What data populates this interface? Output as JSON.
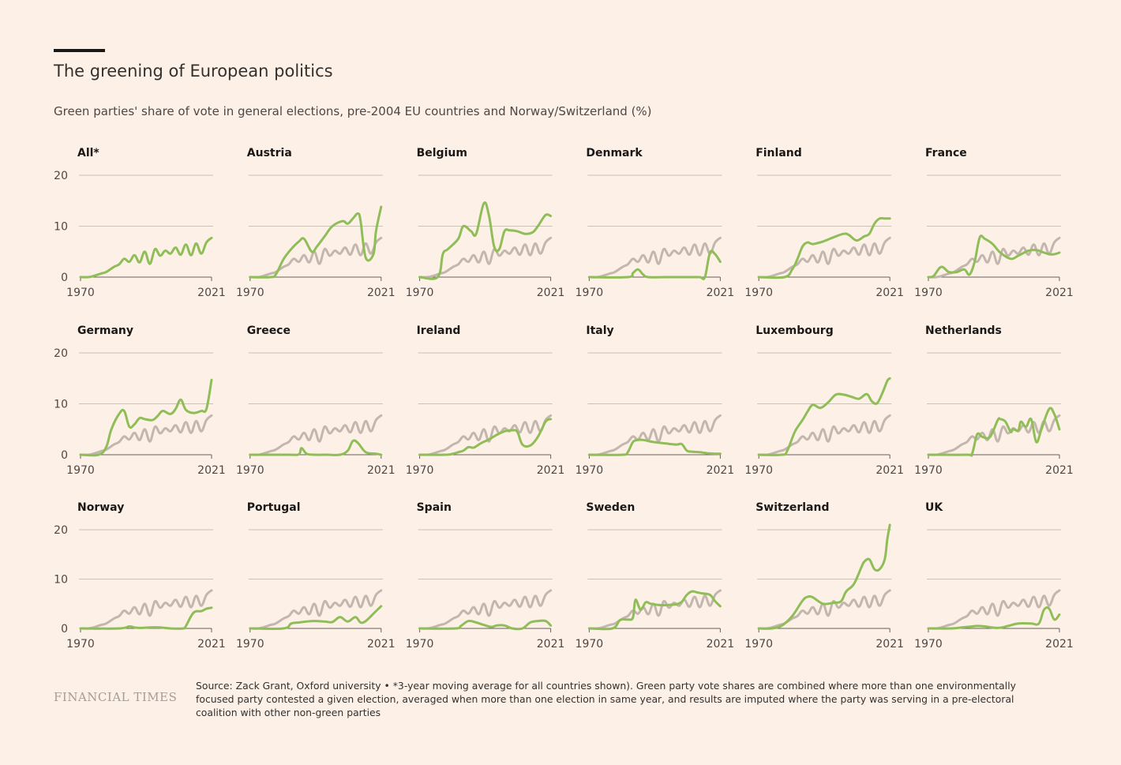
{
  "header": {
    "title": "The greening of European politics",
    "subtitle": "Green parties' share of vote in general elections, pre-2004 EU countries and Norway/Switzerland (%)"
  },
  "footer": {
    "logo": "FINANCIAL TIMES",
    "source": "Source: Zack Grant, Oxford university • *3-year moving average for all countries shown). Green party vote shares are combined where more than one environmentally focused party contested a given election, averaged when more than one election in same year, and results are imputed where the party was serving in a pre-electoral coalition with other non-green parties"
  },
  "colors": {
    "green": "#8fbd57",
    "grey": "#c2b6ae",
    "background": "#fdf0e6"
  },
  "chart_data": {
    "type": "line",
    "layout": "small-multiples",
    "xlim": [
      1970,
      2021
    ],
    "ylim": [
      0,
      20
    ],
    "x_ticks": [
      "1970",
      "2021"
    ],
    "y_ticks": [
      "0",
      "10",
      "20"
    ],
    "reference_series": {
      "name": "All*",
      "x": [
        1970,
        1973,
        1975,
        1978,
        1980,
        1983,
        1985,
        1987,
        1989,
        1991,
        1993,
        1995,
        1997,
        1999,
        2001,
        2003,
        2005,
        2007,
        2009,
        2011,
        2013,
        2015,
        2017,
        2019,
        2021
      ],
      "values": [
        0,
        0,
        0.2,
        0.7,
        1.0,
        2.0,
        2.5,
        3.6,
        3.0,
        4.3,
        2.9,
        5.0,
        2.6,
        5.5,
        4.2,
        5.2,
        4.6,
        5.8,
        4.4,
        6.4,
        4.3,
        6.6,
        4.6,
        6.8,
        7.7
      ]
    },
    "panels": [
      {
        "name": "All*",
        "x": [
          1970,
          1973,
          1975,
          1978,
          1980,
          1983,
          1985,
          1987,
          1989,
          1991,
          1993,
          1995,
          1997,
          1999,
          2001,
          2003,
          2005,
          2007,
          2009,
          2011,
          2013,
          2015,
          2017,
          2019,
          2021
        ],
        "values": [
          0,
          0,
          0.2,
          0.7,
          1.0,
          2.0,
          2.5,
          3.6,
          3.0,
          4.3,
          2.9,
          5.0,
          2.6,
          5.5,
          4.2,
          5.2,
          4.6,
          5.8,
          4.4,
          6.4,
          4.3,
          6.6,
          4.6,
          6.8,
          7.7
        ]
      },
      {
        "name": "Austria",
        "x": [
          1970,
          1978,
          1980,
          1983,
          1986,
          1989,
          1991,
          1994,
          1996,
          1999,
          2002,
          2006,
          2008,
          2010,
          2012,
          2013,
          2015,
          2018,
          2019,
          2021
        ],
        "values": [
          0,
          0,
          0.5,
          3.5,
          5.5,
          7.0,
          7.5,
          5.0,
          6.0,
          8.0,
          10.0,
          11.0,
          10.5,
          11.5,
          12.5,
          11.0,
          3.8,
          4.5,
          9.0,
          13.8
        ]
      },
      {
        "name": "Belgium",
        "x": [
          1970,
          1977,
          1979,
          1981,
          1985,
          1987,
          1990,
          1992,
          1995,
          1997,
          1999,
          2001,
          2003,
          2005,
          2008,
          2011,
          2014,
          2016,
          2019,
          2021
        ],
        "values": [
          0,
          0,
          4.5,
          5.5,
          7.5,
          10.0,
          9.0,
          8.5,
          14.5,
          12.0,
          6.0,
          5.5,
          9.0,
          9.2,
          9.0,
          8.5,
          8.8,
          10.0,
          12.2,
          12.0
        ]
      },
      {
        "name": "Denmark",
        "x": [
          1970,
          1985,
          1987,
          1989,
          1991,
          1993,
          2000,
          2008,
          2013,
          2015,
          2017,
          2019,
          2021
        ],
        "values": [
          0,
          0,
          0.8,
          1.5,
          0.5,
          0,
          0,
          0,
          0,
          0,
          4.8,
          4.5,
          3.0
        ]
      },
      {
        "name": "Finland",
        "x": [
          1970,
          1980,
          1983,
          1985,
          1987,
          1989,
          1991,
          1995,
          1999,
          2003,
          2005,
          2008,
          2011,
          2013,
          2015,
          2017,
          2019,
          2021
        ],
        "values": [
          0,
          0,
          1.5,
          3.5,
          6.0,
          6.8,
          6.5,
          7.0,
          7.8,
          8.5,
          8.3,
          7.2,
          8.0,
          8.5,
          10.5,
          11.5,
          11.5,
          11.5
        ]
      },
      {
        "name": "France",
        "x": [
          1970,
          1972,
          1975,
          1978,
          1981,
          1984,
          1986,
          1988,
          1990,
          1992,
          1995,
          1998,
          2002,
          2005,
          2009,
          2012,
          2014,
          2017,
          2019,
          2021
        ],
        "values": [
          0,
          0.2,
          2.0,
          1.0,
          1.0,
          1.5,
          0.5,
          3.0,
          7.8,
          7.5,
          6.5,
          4.8,
          3.6,
          4.2,
          5.2,
          5.3,
          5.0,
          4.5,
          4.5,
          4.8
        ]
      },
      {
        "name": "Germany",
        "x": [
          1970,
          1977,
          1980,
          1982,
          1985,
          1987,
          1989,
          1991,
          1993,
          1995,
          1998,
          2000,
          2002,
          2005,
          2007,
          2009,
          2011,
          2014,
          2017,
          2019,
          2021
        ],
        "values": [
          0,
          0,
          1.5,
          5.0,
          8.0,
          8.6,
          5.5,
          6.0,
          7.2,
          7.0,
          6.8,
          7.6,
          8.6,
          8.0,
          9.0,
          10.8,
          8.8,
          8.2,
          8.6,
          9.0,
          14.7
        ]
      },
      {
        "name": "Greece",
        "x": [
          1970,
          1985,
          1989,
          1990,
          1992,
          1995,
          2000,
          2005,
          2008,
          2010,
          2012,
          2015,
          2019,
          2021
        ],
        "values": [
          0,
          0,
          0.1,
          1.3,
          0.2,
          0,
          0,
          0,
          0.8,
          2.7,
          2.3,
          0.5,
          0.2,
          0
        ]
      },
      {
        "name": "Ireland",
        "x": [
          1970,
          1980,
          1983,
          1985,
          1987,
          1989,
          1991,
          1994,
          1997,
          2000,
          2003,
          2006,
          2008,
          2010,
          2013,
          2016,
          2019,
          2021
        ],
        "values": [
          0,
          0,
          0.2,
          0.5,
          0.8,
          1.5,
          1.4,
          2.3,
          3.0,
          3.9,
          4.6,
          4.8,
          4.5,
          2.0,
          1.8,
          3.5,
          6.5,
          7.0
        ]
      },
      {
        "name": "Italy",
        "x": [
          1970,
          1983,
          1985,
          1987,
          1989,
          1991,
          1995,
          2000,
          2004,
          2006,
          2008,
          2010,
          2013,
          2016,
          2019,
          2021
        ],
        "values": [
          0,
          0,
          0.5,
          2.5,
          2.9,
          2.9,
          2.5,
          2.2,
          2.0,
          2.1,
          0.8,
          0.6,
          0.5,
          0.3,
          0.2,
          0.2
        ]
      },
      {
        "name": "Luxembourg",
        "x": [
          1970,
          1979,
          1981,
          1984,
          1987,
          1989,
          1991,
          1994,
          1997,
          2000,
          2003,
          2006,
          2009,
          2012,
          2014,
          2016,
          2018,
          2020,
          2021
        ],
        "values": [
          0,
          0,
          0.7,
          4.5,
          6.8,
          8.5,
          9.8,
          9.2,
          10.3,
          11.8,
          11.8,
          11.4,
          11.0,
          11.9,
          10.5,
          10.1,
          12.0,
          14.5,
          15.0
        ]
      },
      {
        "name": "Netherlands",
        "x": [
          1970,
          1985,
          1987,
          1989,
          1991,
          1994,
          1997,
          1998,
          2000,
          2002,
          2003,
          2005,
          2006,
          2008,
          2010,
          2012,
          2014,
          2017,
          2019,
          2021
        ],
        "values": [
          0,
          0,
          0.2,
          4.0,
          3.5,
          3.5,
          6.8,
          7.0,
          6.5,
          4.5,
          5.0,
          4.8,
          6.5,
          5.5,
          7.0,
          2.5,
          5.0,
          9.0,
          8.0,
          5.0
        ]
      },
      {
        "name": "Norway",
        "x": [
          1970,
          1985,
          1989,
          1991,
          1993,
          1997,
          2001,
          2005,
          2010,
          2011,
          2014,
          2017,
          2019,
          2021
        ],
        "values": [
          0,
          0,
          0.4,
          0.2,
          0.1,
          0.2,
          0.2,
          0,
          0,
          0.5,
          3.2,
          3.5,
          4.0,
          4.2
        ]
      },
      {
        "name": "Portugal",
        "x": [
          1970,
          1983,
          1986,
          1989,
          1992,
          1995,
          1999,
          2002,
          2005,
          2008,
          2011,
          2013,
          2015,
          2018,
          2020,
          2021
        ],
        "values": [
          0,
          0,
          1.0,
          1.2,
          1.4,
          1.5,
          1.4,
          1.3,
          2.3,
          1.4,
          2.3,
          1.2,
          1.5,
          3.0,
          4.0,
          4.5
        ]
      },
      {
        "name": "Spain",
        "x": [
          1970,
          1984,
          1986,
          1989,
          1992,
          1995,
          1998,
          2000,
          2003,
          2006,
          2010,
          2013,
          2016,
          2019,
          2021
        ],
        "values": [
          0,
          0,
          0.5,
          1.5,
          1.2,
          0.7,
          0.3,
          0.6,
          0.6,
          0,
          0,
          1.2,
          1.5,
          1.5,
          0.6
        ]
      },
      {
        "name": "Sweden",
        "x": [
          1970,
          1979,
          1982,
          1985,
          1987,
          1988,
          1990,
          1992,
          1994,
          1998,
          2002,
          2004,
          2006,
          2008,
          2010,
          2012,
          2014,
          2017,
          2019,
          2021
        ],
        "values": [
          0,
          0,
          1.7,
          1.8,
          2.2,
          5.8,
          3.8,
          5.3,
          5.0,
          4.7,
          4.8,
          4.9,
          5.4,
          6.8,
          7.5,
          7.3,
          7.1,
          6.8,
          5.5,
          4.5
        ]
      },
      {
        "name": "Switzerland",
        "x": [
          1970,
          1975,
          1979,
          1983,
          1987,
          1989,
          1991,
          1995,
          1999,
          2002,
          2004,
          2007,
          2010,
          2011,
          2013,
          2015,
          2017,
          2019,
          2020,
          2021
        ],
        "values": [
          0,
          0,
          0.6,
          2.5,
          5.6,
          6.4,
          6.3,
          5.0,
          5.2,
          5.5,
          7.5,
          9.0,
          12.5,
          13.5,
          14.0,
          12.0,
          12.0,
          14.0,
          18.0,
          21.0
        ]
      },
      {
        "name": "UK",
        "x": [
          1970,
          1979,
          1983,
          1987,
          1989,
          1992,
          1997,
          2001,
          2005,
          2010,
          2013,
          2015,
          2017,
          2019,
          2021
        ],
        "values": [
          0,
          0,
          0.2,
          0.4,
          0.5,
          0.4,
          0.1,
          0.5,
          1.0,
          1.0,
          1.0,
          3.8,
          4.0,
          1.8,
          2.8
        ]
      }
    ]
  }
}
